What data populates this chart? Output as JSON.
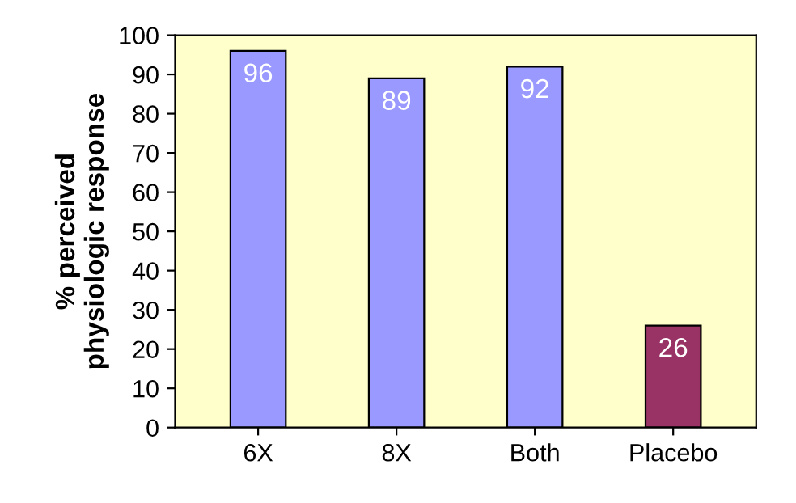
{
  "chart_data": {
    "type": "bar",
    "ylabel": "% perceived\nphysiologic response",
    "categories": [
      "6X",
      "8X",
      "Both",
      "Placebo"
    ],
    "values": [
      96,
      89,
      92,
      26
    ],
    "colors": [
      "#9999ff",
      "#9999ff",
      "#9999ff",
      "#993366"
    ],
    "ylim": [
      0,
      100
    ],
    "yticks": [
      0,
      10,
      20,
      30,
      40,
      50,
      60,
      70,
      80,
      90,
      100
    ],
    "data_labels": true,
    "grid": false,
    "legend": false
  }
}
